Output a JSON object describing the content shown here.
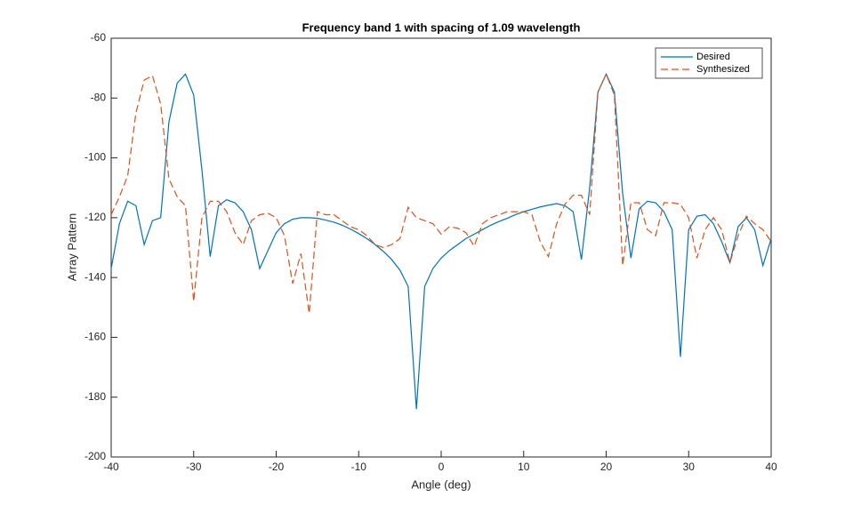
{
  "chart_data": {
    "type": "line",
    "title": "Frequency band 1 with spacing of  1.09 wavelength",
    "x_label": "Angle (deg)",
    "y_label": "Array Pattern",
    "x": [
      -40,
      -39,
      -38,
      -37,
      -36,
      -35,
      -34,
      -33,
      -32,
      -31,
      -30,
      -29,
      -28,
      -27,
      -26,
      -25,
      -24,
      -23,
      -22,
      -21,
      -20,
      -19,
      -18,
      -17,
      -16,
      -15,
      -14,
      -13,
      -12,
      -11,
      -10,
      -9,
      -8,
      -7,
      -6,
      -5,
      -4,
      -3,
      -2,
      -1,
      0,
      1,
      2,
      3,
      4,
      5,
      6,
      7,
      8,
      9,
      10,
      11,
      12,
      13,
      14,
      15,
      16,
      17,
      18,
      19,
      20,
      21,
      22,
      23,
      24,
      25,
      26,
      27,
      28,
      29,
      30,
      31,
      32,
      33,
      34,
      35,
      36,
      37,
      38,
      39,
      40
    ],
    "series": [
      {
        "name": "Desired",
        "color": "#0072bd",
        "dash": "solid",
        "values": [
          -137,
          -122,
          -114.5,
          -116,
          -129,
          -121,
          -120,
          -88,
          -75,
          -72,
          -79,
          -104,
          -133,
          -116,
          -114,
          -115,
          -118,
          -124,
          -137,
          -131,
          -125,
          -122,
          -120.5,
          -120,
          -120,
          -120.2,
          -120.8,
          -121.5,
          -122.5,
          -123.8,
          -125.3,
          -127,
          -129,
          -131.3,
          -134,
          -137.5,
          -143,
          -184,
          -143,
          -137,
          -133.5,
          -131,
          -129,
          -127,
          -125.5,
          -124,
          -122.5,
          -121.3,
          -120.2,
          -119,
          -118,
          -117.2,
          -116.4,
          -115.8,
          -115.3,
          -116,
          -118,
          -134,
          -110,
          -78,
          -72,
          -78,
          -112,
          -133.5,
          -117,
          -114.5,
          -115,
          -118,
          -124,
          -166.5,
          -124,
          -119.5,
          -119,
          -122,
          -128,
          -135,
          -123,
          -120,
          -124,
          -136,
          -127
        ]
      },
      {
        "name": "Synthesized",
        "color": "#d95319",
        "dash": "dashed",
        "values": [
          -119,
          -113,
          -106,
          -85,
          -74,
          -72.5,
          -82,
          -107,
          -113,
          -116,
          -148,
          -120,
          -114.5,
          -114.5,
          -118,
          -125,
          -129,
          -121,
          -119,
          -118.5,
          -120,
          -126,
          -142,
          -132,
          -152,
          -118,
          -119,
          -119,
          -121,
          -123,
          -124,
          -126,
          -129,
          -130,
          -129,
          -127,
          -116.5,
          -120,
          -121,
          -122,
          -125.5,
          -123,
          -123.5,
          -125,
          -129.5,
          -122,
          -120,
          -119,
          -118,
          -118,
          -118,
          -119,
          -128,
          -133,
          -122,
          -115.5,
          -112.5,
          -112.5,
          -119,
          -78,
          -72,
          -79,
          -136,
          -115,
          -115,
          -124,
          -126,
          -115,
          -115,
          -115.5,
          -120,
          -133.5,
          -124,
          -120,
          -124,
          -135,
          -126,
          -119.5,
          -122,
          -124,
          -128
        ]
      }
    ],
    "xlim": [
      -40,
      40
    ],
    "xticks": [
      -40,
      -30,
      -20,
      -10,
      0,
      10,
      20,
      30,
      40
    ],
    "ylim": [
      -200,
      -60
    ],
    "yticks": [
      -200,
      -180,
      -160,
      -140,
      -120,
      -100,
      -80,
      -60
    ],
    "legend": "northeast"
  }
}
